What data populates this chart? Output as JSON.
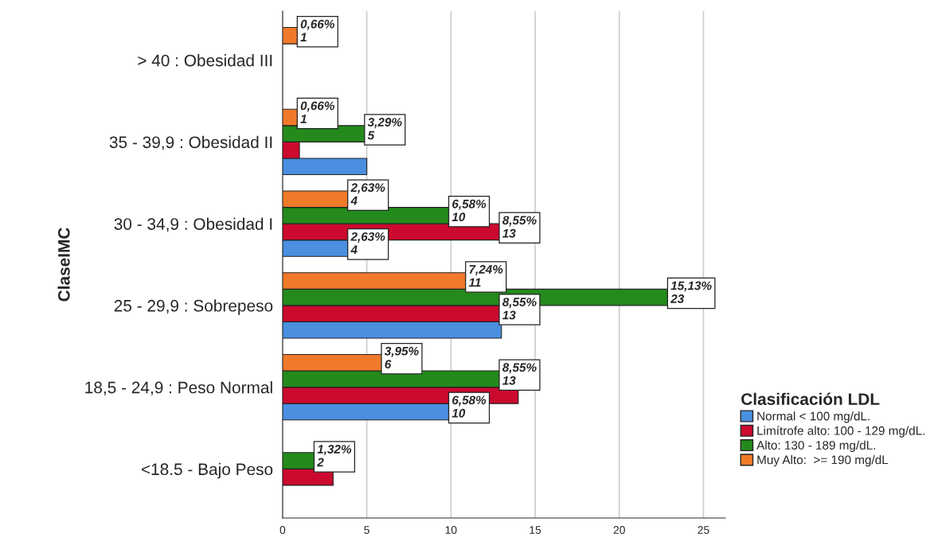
{
  "chart_data": {
    "type": "bar",
    "orientation": "horizontal",
    "ylabel": "ClaseIMC",
    "legend_title": "Clasificación LDL",
    "categories": [
      "> 40 : Obesidad III",
      "35 - 39,9 : Obesidad II",
      "30 - 34,9 : Obesidad I",
      "25 - 29,9 : Sobrepeso",
      "18,5 - 24,9 : Peso Normal",
      "<18.5 - Bajo Peso"
    ],
    "series": [
      {
        "name": "Normal < 100 mg/dL.",
        "color": "#4a8fe0",
        "values": [
          null,
          5,
          4,
          13,
          10,
          null
        ],
        "value_labels": [
          null,
          null,
          "2,63%\n4",
          null,
          "6,58%\n10",
          null
        ]
      },
      {
        "name": "Limítrofe alto: 100 - 129 mg/dL.",
        "color": "#cc0a2f",
        "values": [
          null,
          1,
          13,
          13,
          14,
          3
        ],
        "value_labels": [
          null,
          null,
          "8,55%\n13",
          "8,55%\n13",
          null,
          null
        ]
      },
      {
        "name": "Alto: 130 - 189 mg/dL.",
        "color": "#248a1c",
        "values": [
          null,
          5,
          10,
          23,
          13,
          2
        ],
        "value_labels": [
          null,
          "3,29%\n5",
          "6,58%\n10",
          "15,13%\n23",
          "8,55%\n13",
          "1,32%\n2"
        ]
      },
      {
        "name": "Muy Alto:  >= 190 mg/dL",
        "color": "#f07a2a",
        "values": [
          1,
          1,
          4,
          11,
          6,
          null
        ],
        "value_labels": [
          "0,66%\n1",
          "0,66%\n1",
          "2,63%\n4",
          "7,24%\n11",
          "3,95%\n6",
          null
        ]
      }
    ],
    "xlim": [
      0,
      26.3
    ],
    "xticks": [
      0,
      5,
      10,
      15,
      20,
      25
    ],
    "grid": "x",
    "legend": "bottom right"
  }
}
